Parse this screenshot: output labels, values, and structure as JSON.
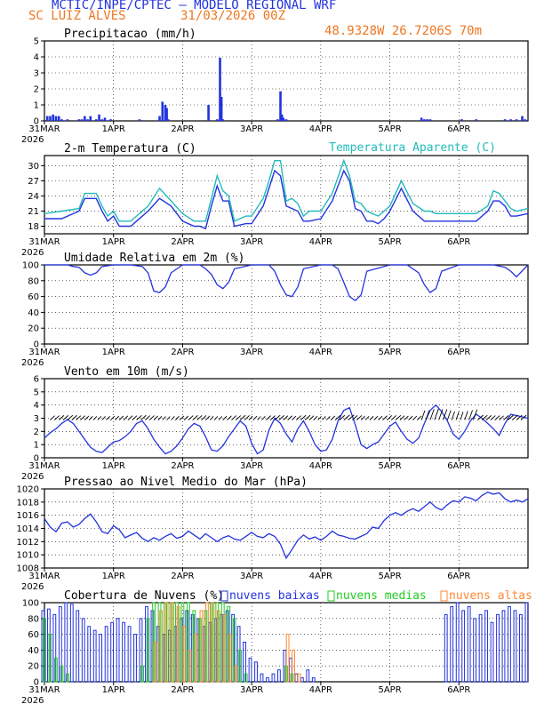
{
  "header": {
    "title": "MCTIC/INPE/CPTEC – MODELO REGIONAL WRF",
    "station": "SC LUIZ ALVES",
    "datetime": "31/03/2026 00Z",
    "coords": "48.9328W 26.7206S 70m"
  },
  "x_axis": {
    "labels": [
      "31MAR",
      "1APR",
      "2APR",
      "3APR",
      "4APR",
      "5APR",
      "6APR"
    ],
    "year": "2026",
    "hours_total": 168
  },
  "colors": {
    "blue": "#2233dd",
    "cyan": "#22bbbb",
    "green": "#22cc22",
    "orange": "#ff8833",
    "black": "#000000"
  },
  "chart_data": [
    {
      "id": "precip",
      "type": "bar",
      "title": "Precipitacao (mm/h)",
      "ylim": [
        0,
        5
      ],
      "yticks": [
        0,
        1,
        2,
        3,
        4,
        5
      ],
      "x_hours": [
        1,
        2,
        3,
        4,
        5,
        6,
        8,
        12,
        13,
        14,
        15,
        16,
        18,
        19,
        20,
        21,
        23,
        33,
        40,
        41,
        42,
        42.5,
        43,
        57,
        60,
        61,
        61.5,
        62,
        81,
        82,
        82.5,
        83,
        84,
        131,
        132,
        133,
        134,
        145,
        150,
        160,
        162,
        164,
        166,
        167
      ],
      "values": [
        0.3,
        0.3,
        0.4,
        0.3,
        0.3,
        0.1,
        0.1,
        0.1,
        0.1,
        0.3,
        0.1,
        0.3,
        0.1,
        0.4,
        0.1,
        0.2,
        0.1,
        0.1,
        0.3,
        1.2,
        1.0,
        0.8,
        0.1,
        1.0,
        0.1,
        3.95,
        1.5,
        0.1,
        0.1,
        1.85,
        0.4,
        0.2,
        0.1,
        0.2,
        0.1,
        0.1,
        0.1,
        0.1,
        0.1,
        0.1,
        0.1,
        0.1,
        0.3,
        0.1
      ]
    },
    {
      "id": "temp",
      "type": "line",
      "title": "2-m Temperatura (C)",
      "legend": "Temperatura Aparente (C)",
      "ylim": [
        16.5,
        32
      ],
      "yticks": [
        18,
        21,
        24,
        27,
        30
      ],
      "x_hours": [
        0,
        6,
        12,
        14,
        18,
        20,
        22,
        24,
        26,
        28,
        30,
        32,
        36,
        40,
        44,
        48,
        52,
        54,
        56,
        58,
        60,
        62,
        64,
        66,
        70,
        72,
        76,
        78,
        80,
        82,
        84,
        86,
        88,
        90,
        92,
        96,
        100,
        104,
        106,
        108,
        110,
        112,
        114,
        116,
        118,
        120,
        124,
        128,
        132,
        134,
        136,
        140,
        144,
        150,
        154,
        156,
        158,
        160,
        162,
        164,
        168
      ],
      "series": [
        {
          "name": "Temperatura 2m",
          "color": "#2233dd",
          "values": [
            19.5,
            19.5,
            21,
            23.5,
            23.5,
            21,
            19,
            20,
            18,
            18,
            18,
            19,
            21,
            23.5,
            22,
            19,
            18,
            18,
            17.5,
            22,
            26,
            23,
            23,
            18,
            18.5,
            18.5,
            22,
            25.5,
            29,
            28,
            22,
            21.5,
            21,
            19,
            19,
            19.5,
            23,
            29,
            27,
            21.5,
            21,
            19,
            19,
            18.5,
            19.5,
            21,
            25.5,
            21,
            19,
            19,
            19,
            19,
            19,
            19,
            21,
            23,
            23,
            22,
            20,
            20,
            20.5
          ]
        },
        {
          "name": "Temperatura Aparente",
          "color": "#22bbbb",
          "values": [
            20.5,
            21,
            21.5,
            24.5,
            24.5,
            22,
            20,
            21,
            19,
            19,
            19,
            20,
            22,
            25.5,
            23,
            20.5,
            19,
            19,
            19,
            23.5,
            28,
            25,
            24,
            19,
            20,
            20,
            23.5,
            27,
            31,
            31,
            23,
            23.5,
            22.5,
            20,
            21,
            21,
            24.5,
            31,
            28,
            23,
            22.5,
            21,
            20.5,
            20,
            21,
            22,
            27,
            22.5,
            21,
            21,
            20.5,
            20.5,
            20.5,
            20.5,
            22,
            25,
            24.5,
            23,
            21.5,
            21,
            21.5
          ]
        }
      ]
    },
    {
      "id": "rh",
      "type": "line",
      "title": "Umidade Relativa em 2m (%)",
      "ylim": [
        0,
        100
      ],
      "yticks": [
        0,
        20,
        40,
        60,
        80,
        100
      ],
      "x_hours": [
        0,
        6,
        8,
        10,
        12,
        14,
        16,
        18,
        20,
        24,
        30,
        34,
        36,
        38,
        40,
        42,
        44,
        48,
        54,
        56,
        58,
        60,
        62,
        64,
        66,
        72,
        78,
        80,
        82,
        84,
        86,
        88,
        90,
        96,
        100,
        102,
        104,
        106,
        108,
        110,
        112,
        120,
        126,
        128,
        130,
        132,
        134,
        136,
        138,
        144,
        150,
        156,
        160,
        162,
        164,
        168
      ],
      "values": [
        100,
        100,
        100,
        98,
        97,
        90,
        87,
        90,
        98,
        100,
        100,
        98,
        90,
        67,
        65,
        72,
        90,
        100,
        100,
        95,
        88,
        75,
        70,
        78,
        95,
        100,
        100,
        92,
        75,
        62,
        60,
        72,
        95,
        100,
        100,
        95,
        78,
        60,
        55,
        62,
        92,
        100,
        100,
        95,
        90,
        75,
        65,
        70,
        92,
        100,
        100,
        100,
        97,
        92,
        85,
        100
      ]
    },
    {
      "id": "wind",
      "type": "line",
      "title": "Vento em 10m (m/s)",
      "barbs": "wind-barbs",
      "ylim": [
        0,
        6
      ],
      "yticks": [
        0,
        1,
        2,
        3,
        4,
        5,
        6
      ],
      "x_hours": [
        0,
        2,
        4,
        6,
        8,
        10,
        12,
        14,
        16,
        18,
        20,
        22,
        24,
        26,
        28,
        30,
        32,
        34,
        36,
        38,
        40,
        42,
        44,
        46,
        48,
        50,
        52,
        54,
        56,
        58,
        60,
        62,
        64,
        66,
        68,
        70,
        72,
        74,
        76,
        78,
        80,
        82,
        84,
        86,
        88,
        90,
        92,
        94,
        96,
        98,
        100,
        102,
        104,
        106,
        108,
        110,
        112,
        114,
        116,
        118,
        120,
        122,
        124,
        126,
        128,
        130,
        132,
        134,
        136,
        138,
        140,
        142,
        144,
        146,
        148,
        150,
        152,
        154,
        156,
        158,
        160,
        162,
        164,
        166,
        168
      ],
      "values": [
        1.5,
        1.9,
        2.2,
        2.6,
        2.9,
        2.6,
        2.0,
        1.4,
        0.8,
        0.5,
        0.4,
        0.8,
        1.2,
        1.3,
        1.6,
        2.0,
        2.6,
        2.8,
        2.2,
        1.4,
        0.8,
        0.3,
        0.5,
        0.9,
        1.5,
        2.2,
        2.6,
        2.4,
        1.6,
        0.6,
        0.5,
        0.9,
        1.6,
        2.2,
        2.8,
        2.4,
        1.1,
        0.3,
        0.6,
        2.1,
        3.0,
        2.6,
        1.8,
        1.2,
        2.2,
        2.8,
        2.0,
        1.0,
        0.5,
        0.6,
        1.4,
        2.8,
        3.6,
        3.8,
        2.5,
        1.0,
        0.7,
        1.0,
        1.2,
        1.8,
        2.4,
        2.7,
        2.0,
        1.4,
        1.1,
        1.5,
        2.6,
        3.6,
        4.0,
        3.5,
        2.8,
        1.8,
        1.4,
        2.0,
        2.8,
        3.3,
        3.0,
        2.6,
        2.2,
        1.7,
        2.6,
        3.3,
        3.2,
        3.1,
        3.0
      ]
    },
    {
      "id": "pressure",
      "type": "line",
      "title": "Pressao ao Nivel Medio do Mar (hPa)",
      "ylim": [
        1008,
        1020
      ],
      "yticks": [
        1008,
        1010,
        1012,
        1014,
        1016,
        1018,
        1020
      ],
      "x_hours": [
        0,
        2,
        4,
        6,
        8,
        10,
        12,
        14,
        16,
        18,
        20,
        22,
        24,
        26,
        28,
        30,
        32,
        34,
        36,
        38,
        40,
        42,
        44,
        46,
        48,
        50,
        52,
        54,
        56,
        58,
        60,
        62,
        64,
        66,
        68,
        70,
        72,
        74,
        76,
        78,
        80,
        82,
        84,
        86,
        88,
        90,
        92,
        94,
        96,
        98,
        100,
        102,
        104,
        106,
        108,
        110,
        112,
        114,
        116,
        118,
        120,
        122,
        124,
        126,
        128,
        130,
        132,
        134,
        136,
        138,
        140,
        142,
        144,
        146,
        148,
        150,
        152,
        154,
        156,
        158,
        160,
        162,
        164,
        166,
        168
      ],
      "values": [
        1015.5,
        1014.2,
        1013.5,
        1014.8,
        1015.0,
        1014.2,
        1014.6,
        1015.5,
        1016.2,
        1015.0,
        1013.5,
        1013.2,
        1014.4,
        1013.8,
        1012.6,
        1013.0,
        1013.4,
        1012.5,
        1012.0,
        1012.6,
        1012.2,
        1012.8,
        1013.2,
        1012.5,
        1012.8,
        1013.6,
        1013.0,
        1012.4,
        1013.2,
        1012.6,
        1012.0,
        1012.6,
        1012.9,
        1012.4,
        1012.2,
        1012.8,
        1013.4,
        1012.8,
        1012.6,
        1013.2,
        1012.8,
        1011.6,
        1009.5,
        1010.8,
        1012.2,
        1013.0,
        1012.4,
        1012.7,
        1012.2,
        1012.8,
        1013.6,
        1013.0,
        1012.8,
        1012.5,
        1012.4,
        1012.8,
        1013.2,
        1014.2,
        1014.0,
        1015.2,
        1016.0,
        1016.4,
        1016.0,
        1016.6,
        1017.0,
        1016.6,
        1017.3,
        1018.0,
        1017.2,
        1016.8,
        1017.6,
        1018.2,
        1018.0,
        1018.8,
        1018.6,
        1018.2,
        1019.0,
        1019.5,
        1019.2,
        1019.4,
        1018.5,
        1018.0,
        1018.3,
        1018.0,
        1018.5
      ]
    },
    {
      "id": "clouds",
      "type": "bar",
      "title": "Cobertura de Nuvens (%)",
      "ylim": [
        0,
        100
      ],
      "yticks": [
        0,
        20,
        40,
        60,
        80,
        100
      ],
      "legend": [
        "nuvens baixas",
        "nuvens medias",
        "nuvens altas"
      ],
      "x_hours": [
        0,
        2,
        4,
        6,
        8,
        10,
        12,
        14,
        16,
        18,
        20,
        22,
        24,
        26,
        28,
        30,
        32,
        34,
        36,
        38,
        40,
        42,
        44,
        46,
        48,
        50,
        52,
        54,
        56,
        58,
        60,
        62,
        64,
        66,
        68,
        70,
        72,
        74,
        76,
        78,
        80,
        82,
        84,
        86,
        88,
        90,
        92,
        94,
        96,
        98,
        100,
        102,
        104,
        106,
        108,
        110,
        112,
        114,
        116,
        118,
        120,
        122,
        124,
        126,
        128,
        130,
        132,
        134,
        136,
        138,
        140,
        142,
        144,
        146,
        148,
        150,
        152,
        154,
        156,
        158,
        160,
        162,
        164,
        166,
        168
      ],
      "series": [
        {
          "name": "nuvens baixas",
          "color": "#2233dd",
          "values": [
            90,
            92,
            85,
            95,
            100,
            98,
            90,
            80,
            70,
            65,
            60,
            70,
            75,
            80,
            75,
            70,
            60,
            80,
            95,
            90,
            70,
            60,
            65,
            70,
            80,
            90,
            85,
            80,
            70,
            75,
            80,
            85,
            90,
            85,
            70,
            50,
            30,
            25,
            10,
            5,
            10,
            15,
            40,
            30,
            10,
            5,
            15,
            5,
            0,
            0,
            0,
            0,
            0,
            0,
            0,
            0,
            0,
            0,
            0,
            0,
            0,
            0,
            0,
            0,
            0,
            0,
            0,
            0,
            0,
            0,
            85,
            95,
            100,
            90,
            95,
            80,
            85,
            90,
            75,
            85,
            90,
            95,
            90,
            85,
            100
          ]
        },
        {
          "name": "nuvens medias",
          "color": "#22cc22",
          "values": [
            80,
            60,
            30,
            20,
            10,
            0,
            0,
            0,
            0,
            0,
            0,
            0,
            0,
            0,
            0,
            0,
            0,
            20,
            80,
            100,
            100,
            100,
            100,
            100,
            100,
            100,
            90,
            80,
            90,
            100,
            100,
            100,
            95,
            80,
            40,
            10,
            0,
            0,
            0,
            0,
            0,
            0,
            20,
            10,
            0,
            0,
            0,
            0,
            0,
            0,
            0,
            0,
            0,
            0,
            0,
            0,
            0,
            0,
            0,
            0,
            0,
            0,
            0,
            0,
            0,
            0,
            0,
            0,
            0,
            0,
            0,
            0,
            0,
            0,
            0,
            0,
            0,
            0,
            0,
            0,
            0,
            0,
            0,
            0,
            0
          ]
        },
        {
          "name": "nuvens altas",
          "color": "#ff8833",
          "values": [
            0,
            0,
            0,
            0,
            0,
            0,
            0,
            0,
            0,
            0,
            0,
            0,
            0,
            0,
            0,
            0,
            0,
            0,
            0,
            50,
            90,
            100,
            100,
            95,
            70,
            40,
            60,
            90,
            100,
            100,
            90,
            85,
            60,
            20,
            0,
            0,
            0,
            0,
            0,
            0,
            0,
            0,
            60,
            40,
            10,
            0,
            0,
            0,
            0,
            0,
            0,
            0,
            0,
            0,
            0,
            0,
            0,
            0,
            0,
            0,
            0,
            0,
            0,
            0,
            0,
            0,
            0,
            0,
            0,
            0,
            0,
            0,
            0,
            0,
            0,
            0,
            0,
            0,
            0,
            0,
            0,
            0,
            0,
            0,
            0
          ]
        }
      ]
    }
  ]
}
